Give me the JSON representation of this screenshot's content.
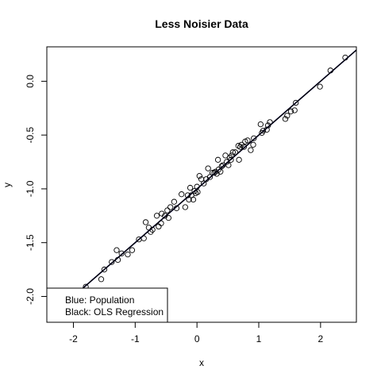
{
  "chart_data": {
    "type": "scatter",
    "title": "Less Noisier Data",
    "xlabel": "x",
    "ylabel": "y",
    "xlim": [
      -2.43,
      2.58
    ],
    "ylim": [
      -2.24,
      0.32
    ],
    "xticks": [
      -2,
      -1,
      0,
      1,
      2
    ],
    "yticks": [
      -2.0,
      -1.5,
      -1.0,
      -0.5,
      0.0
    ],
    "xtick_labels": [
      "-2",
      "-1",
      "0",
      "1",
      "2"
    ],
    "ytick_labels": [
      "-2.0",
      "-1.5",
      "-1.0",
      "-0.5",
      "0.0"
    ],
    "grid": false,
    "legend_position": "bottom-left",
    "legend": [
      {
        "label": "Blue: Population"
      },
      {
        "label": "Black: OLS Regression"
      }
    ],
    "lines": [
      {
        "name": "Population",
        "color": "#0000ff",
        "intercept": -1.0,
        "slope": 0.5
      },
      {
        "name": "OLS Regression",
        "color": "#000000",
        "intercept": -1.0,
        "slope": 0.5
      }
    ],
    "series": [
      {
        "marker": "open-circle",
        "color": "#000000",
        "points": [
          [
            2.4,
            0.22
          ],
          [
            2.16,
            0.1
          ],
          [
            1.99,
            -0.05
          ],
          [
            1.6,
            -0.2
          ],
          [
            1.58,
            -0.27
          ],
          [
            1.52,
            -0.28
          ],
          [
            1.46,
            -0.32
          ],
          [
            1.43,
            -0.35
          ],
          [
            1.18,
            -0.38
          ],
          [
            1.15,
            -0.41
          ],
          [
            1.13,
            -0.45
          ],
          [
            1.07,
            -0.46
          ],
          [
            1.05,
            -0.48
          ],
          [
            1.03,
            -0.4
          ],
          [
            0.92,
            -0.53
          ],
          [
            0.91,
            -0.59
          ],
          [
            0.87,
            -0.64
          ],
          [
            0.82,
            -0.55
          ],
          [
            0.78,
            -0.56
          ],
          [
            0.76,
            -0.61
          ],
          [
            0.72,
            -0.59
          ],
          [
            0.7,
            -0.61
          ],
          [
            0.68,
            -0.73
          ],
          [
            0.67,
            -0.6
          ],
          [
            0.62,
            -0.66
          ],
          [
            0.58,
            -0.66
          ],
          [
            0.56,
            -0.69
          ],
          [
            0.55,
            -0.73
          ],
          [
            0.53,
            -0.71
          ],
          [
            0.51,
            -0.78
          ],
          [
            0.48,
            -0.75
          ],
          [
            0.46,
            -0.69
          ],
          [
            0.42,
            -0.78
          ],
          [
            0.4,
            -0.79
          ],
          [
            0.38,
            -0.84
          ],
          [
            0.35,
            -0.82
          ],
          [
            0.34,
            -0.73
          ],
          [
            0.32,
            -0.86
          ],
          [
            0.3,
            -0.84
          ],
          [
            0.28,
            -0.85
          ],
          [
            0.25,
            -0.85
          ],
          [
            0.21,
            -0.89
          ],
          [
            0.18,
            -0.81
          ],
          [
            0.15,
            -0.91
          ],
          [
            0.11,
            -0.95
          ],
          [
            0.07,
            -0.91
          ],
          [
            0.04,
            -0.88
          ],
          [
            0.01,
            -1.03
          ],
          [
            0.0,
            -0.98
          ],
          [
            -0.02,
            -1.04
          ],
          [
            -0.04,
            -1.02
          ],
          [
            -0.06,
            -1.1
          ],
          [
            -0.09,
            -1.06
          ],
          [
            -0.11,
            -0.99
          ],
          [
            -0.13,
            -1.1
          ],
          [
            -0.15,
            -1.06
          ],
          [
            -0.19,
            -1.17
          ],
          [
            -0.25,
            -1.05
          ],
          [
            -0.33,
            -1.18
          ],
          [
            -0.37,
            -1.12
          ],
          [
            -0.43,
            -1.17
          ],
          [
            -0.46,
            -1.27
          ],
          [
            -0.48,
            -1.2
          ],
          [
            -0.52,
            -1.25
          ],
          [
            -0.57,
            -1.23
          ],
          [
            -0.58,
            -1.32
          ],
          [
            -0.62,
            -1.35
          ],
          [
            -0.65,
            -1.25
          ],
          [
            -0.72,
            -1.38
          ],
          [
            -0.75,
            -1.4
          ],
          [
            -0.78,
            -1.36
          ],
          [
            -0.83,
            -1.31
          ],
          [
            -0.86,
            -1.46
          ],
          [
            -0.94,
            -1.47
          ],
          [
            -1.05,
            -1.57
          ],
          [
            -1.12,
            -1.61
          ],
          [
            -1.22,
            -1.6
          ],
          [
            -1.28,
            -1.66
          ],
          [
            -1.3,
            -1.57
          ],
          [
            -1.38,
            -1.68
          ],
          [
            -1.5,
            -1.75
          ],
          [
            -1.55,
            -1.84
          ],
          [
            -1.8,
            -1.91
          ]
        ]
      }
    ]
  }
}
